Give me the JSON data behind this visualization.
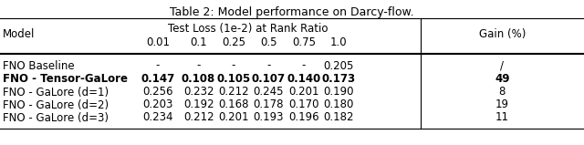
{
  "title": "Table 2: Model performance on Darcy-flow.",
  "rows": [
    [
      "FNO Baseline",
      "-",
      "-",
      "-",
      "-",
      "-",
      "0.205",
      "/"
    ],
    [
      "FNO - Tensor-GaLore",
      "0.147",
      "0.108",
      "0.105",
      "0.107",
      "0.140",
      "0.173",
      "49"
    ],
    [
      "FNO - GaLore (d=1)",
      "0.256",
      "0.232",
      "0.212",
      "0.245",
      "0.201",
      "0.190",
      "8"
    ],
    [
      "FNO - GaLore (d=2)",
      "0.203",
      "0.192",
      "0.168",
      "0.178",
      "0.170",
      "0.180",
      "19"
    ],
    [
      "FNO - GaLore (d=3)",
      "0.234",
      "0.212",
      "0.201",
      "0.193",
      "0.196",
      "0.182",
      "11"
    ]
  ],
  "bold_row": 1,
  "rank_labels": [
    "0.01",
    "0.1",
    "0.25",
    "0.5",
    "0.75",
    "1.0"
  ],
  "background_color": "#ffffff",
  "text_color": "#000000",
  "figsize": [
    6.4,
    1.59
  ],
  "dpi": 100,
  "title_fontsize": 9,
  "body_fontsize": 8.5
}
